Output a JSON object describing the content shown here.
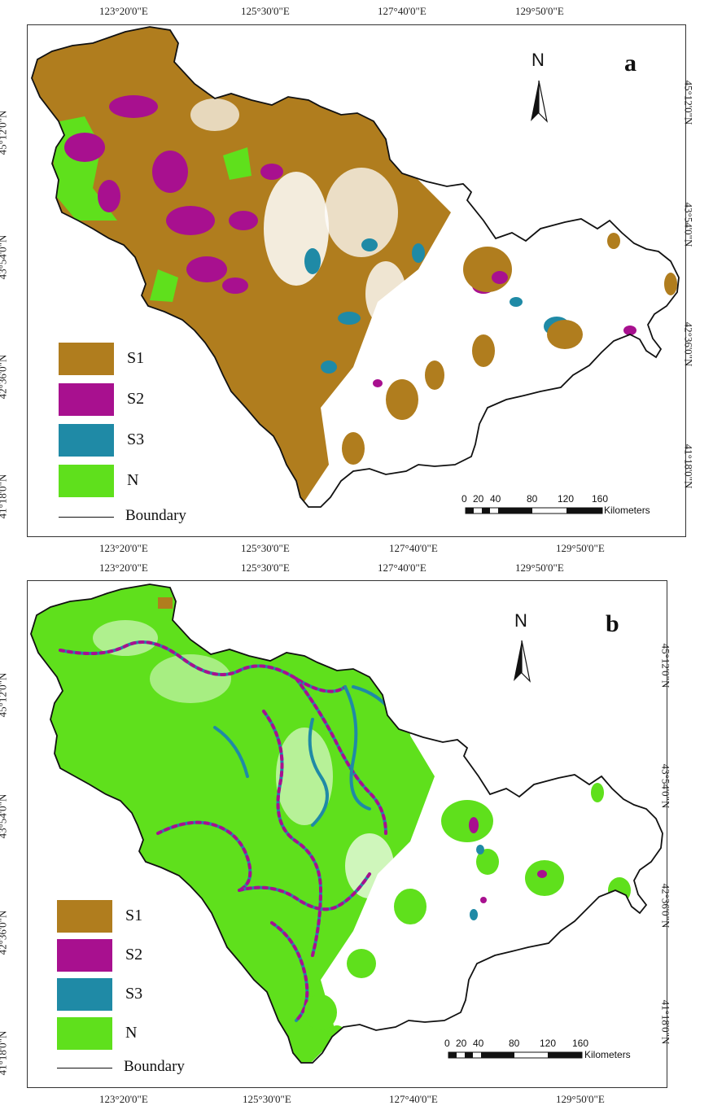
{
  "panels": [
    {
      "letter": "a",
      "north": "N",
      "top_labels": [
        "123°20'0\"E",
        "125°30'0\"E",
        "127°40'0\"E",
        "129°50'0\"E"
      ],
      "bottom_labels": [
        "123°20'0\"E",
        "125°30'0\"E",
        "127°40'0\"E",
        "129°50'0\"E"
      ],
      "left_labels": [
        "45°12'0\"N",
        "43°54'0\"N",
        "42°36'0\"N",
        "41°18'0\"N"
      ],
      "right_labels": [
        "45°12'0\"N",
        "43°54'0\"N",
        "42°36'0\"N",
        "41°18'0\"N"
      ],
      "dominant_class": "S1"
    },
    {
      "letter": "b",
      "north": "N",
      "top_labels": [
        "123°20'0\"E",
        "125°30'0\"E",
        "127°40'0\"E",
        "129°50'0\"E"
      ],
      "bottom_labels": [
        "123°20'0\"E",
        "125°30'0\"E",
        "127°40'0\"E",
        "129°50'0\"E"
      ],
      "left_labels": [
        "45°12'0\"N",
        "43°54'0\"N",
        "42°36'0\"N",
        "41°18'0\"N"
      ],
      "right_labels": [
        "45°12'0\"N",
        "43°54'0\"N",
        "42°36'0\"N",
        "41°18'0\"N"
      ],
      "dominant_class": "N"
    }
  ],
  "legend": [
    {
      "label": "S1",
      "color": "#b07d1e"
    },
    {
      "label": "S2",
      "color": "#a8108f"
    },
    {
      "label": "S3",
      "color": "#1f8aa6"
    },
    {
      "label": "N",
      "color": "#5fe01c"
    }
  ],
  "boundary_label": "Boundary",
  "scale": {
    "ticks": [
      "0",
      "20",
      "40",
      "80",
      "120",
      "160"
    ],
    "unit": "Kilometers"
  },
  "colors": {
    "S1": "#b07d1e",
    "S2": "#a8108f",
    "S3": "#1f8aa6",
    "N": "#5fe01c",
    "boundary": "#111111"
  }
}
